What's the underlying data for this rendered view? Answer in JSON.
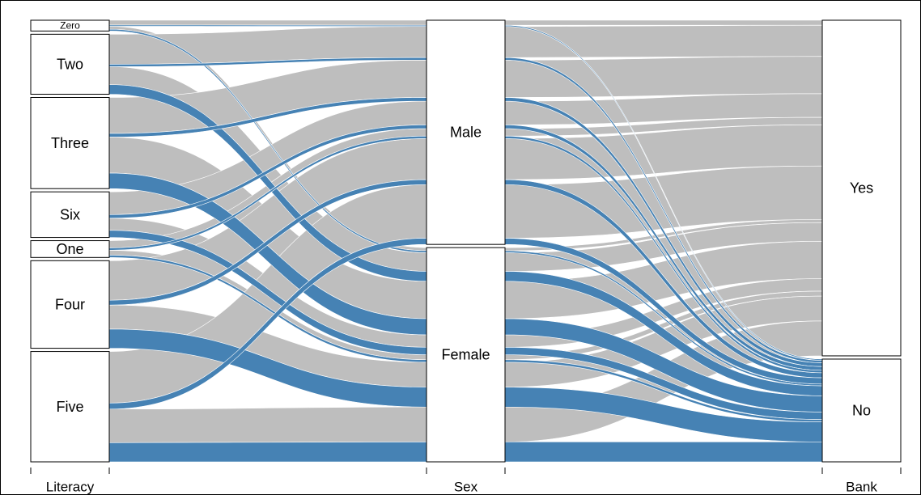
{
  "chart_data": {
    "type": "alluvial",
    "axes": [
      {
        "key": "literacy",
        "label": "Literacy",
        "categories": [
          "Zero",
          "Two",
          "Three",
          "Six",
          "One",
          "Four",
          "Five"
        ]
      },
      {
        "key": "sex",
        "label": "Sex",
        "categories": [
          "Male",
          "Female"
        ]
      },
      {
        "key": "bank",
        "label": "Bank",
        "categories": [
          "Yes",
          "No"
        ]
      }
    ],
    "highlight": {
      "category": "No",
      "of_axis": "Bank"
    },
    "colors": {
      "highlight": "#4682b4",
      "other": "#bebebe",
      "node_fill": "#ffffff",
      "node_stroke": "#000000"
    },
    "flows": [
      {
        "literacy": "Zero",
        "sex": "Male",
        "bank": "Yes",
        "value": 0.4
      },
      {
        "literacy": "Zero",
        "sex": "Male",
        "bank": "No",
        "value": 0.1
      },
      {
        "literacy": "Zero",
        "sex": "Female",
        "bank": "Yes",
        "value": 0.25
      },
      {
        "literacy": "Zero",
        "sex": "Female",
        "bank": "No",
        "value": 0.15
      },
      {
        "literacy": "Two",
        "sex": "Male",
        "bank": "Yes",
        "value": 2.5
      },
      {
        "literacy": "Two",
        "sex": "Male",
        "bank": "No",
        "value": 0.2
      },
      {
        "literacy": "Two",
        "sex": "Female",
        "bank": "Yes",
        "value": 1.5
      },
      {
        "literacy": "Two",
        "sex": "Female",
        "bank": "No",
        "value": 0.8
      },
      {
        "literacy": "Three",
        "sex": "Male",
        "bank": "Yes",
        "value": 3.0
      },
      {
        "literacy": "Three",
        "sex": "Male",
        "bank": "No",
        "value": 0.3
      },
      {
        "literacy": "Three",
        "sex": "Female",
        "bank": "Yes",
        "value": 3.0
      },
      {
        "literacy": "Three",
        "sex": "Female",
        "bank": "No",
        "value": 1.3
      },
      {
        "literacy": "Six",
        "sex": "Male",
        "bank": "Yes",
        "value": 1.9
      },
      {
        "literacy": "Six",
        "sex": "Male",
        "bank": "No",
        "value": 0.3
      },
      {
        "literacy": "Six",
        "sex": "Female",
        "bank": "Yes",
        "value": 1.0
      },
      {
        "literacy": "Six",
        "sex": "Female",
        "bank": "No",
        "value": 0.6
      },
      {
        "literacy": "One",
        "sex": "Male",
        "bank": "Yes",
        "value": 0.6
      },
      {
        "literacy": "One",
        "sex": "Male",
        "bank": "No",
        "value": 0.2
      },
      {
        "literacy": "One",
        "sex": "Female",
        "bank": "Yes",
        "value": 0.4
      },
      {
        "literacy": "One",
        "sex": "Female",
        "bank": "No",
        "value": 0.2
      },
      {
        "literacy": "Four",
        "sex": "Male",
        "bank": "Yes",
        "value": 3.3
      },
      {
        "literacy": "Four",
        "sex": "Male",
        "bank": "No",
        "value": 0.4
      },
      {
        "literacy": "Four",
        "sex": "Female",
        "bank": "Yes",
        "value": 2.0
      },
      {
        "literacy": "Four",
        "sex": "Female",
        "bank": "No",
        "value": 1.6
      },
      {
        "literacy": "Five",
        "sex": "Male",
        "bank": "Yes",
        "value": 4.3
      },
      {
        "literacy": "Five",
        "sex": "Male",
        "bank": "No",
        "value": 0.5
      },
      {
        "literacy": "Five",
        "sex": "Female",
        "bank": "Yes",
        "value": 2.8
      },
      {
        "literacy": "Five",
        "sex": "Female",
        "bank": "No",
        "value": 1.6
      }
    ]
  }
}
